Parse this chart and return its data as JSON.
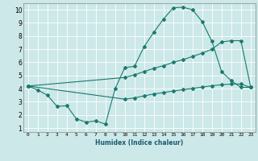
{
  "title": "",
  "xlabel": "Humidex (Indice chaleur)",
  "bg_color": "#cce8e8",
  "line_color": "#1a7a6e",
  "grid_color": "#ffffff",
  "xlim": [
    -0.5,
    23.5
  ],
  "ylim": [
    0.7,
    10.5
  ],
  "yticks": [
    1,
    2,
    3,
    4,
    5,
    6,
    7,
    8,
    9,
    10
  ],
  "xticks": [
    0,
    1,
    2,
    3,
    4,
    5,
    6,
    7,
    8,
    9,
    10,
    11,
    12,
    13,
    14,
    15,
    16,
    17,
    18,
    19,
    20,
    21,
    22,
    23
  ],
  "line1_x": [
    0,
    1,
    2,
    3,
    4,
    5,
    6,
    7,
    8,
    9,
    10,
    11,
    12,
    13,
    14,
    15,
    16,
    17,
    18,
    19,
    20,
    21,
    22,
    23
  ],
  "line1_y": [
    4.2,
    3.9,
    3.5,
    2.65,
    2.7,
    1.7,
    1.45,
    1.55,
    1.3,
    4.0,
    5.6,
    5.7,
    7.2,
    8.3,
    9.3,
    10.15,
    10.2,
    10.0,
    9.1,
    7.6,
    5.3,
    4.6,
    4.1,
    4.1
  ],
  "line2_x": [
    0,
    10,
    11,
    12,
    13,
    14,
    15,
    16,
    17,
    18,
    19,
    20,
    21,
    22,
    23
  ],
  "line2_y": [
    4.2,
    4.85,
    5.05,
    5.3,
    5.55,
    5.75,
    6.0,
    6.2,
    6.45,
    6.7,
    7.0,
    7.55,
    7.65,
    7.65,
    4.15
  ],
  "line3_x": [
    0,
    10,
    11,
    12,
    13,
    14,
    15,
    16,
    17,
    18,
    19,
    20,
    21,
    22,
    23
  ],
  "line3_y": [
    4.2,
    3.2,
    3.3,
    3.45,
    3.6,
    3.7,
    3.82,
    3.92,
    4.02,
    4.12,
    4.22,
    4.3,
    4.35,
    4.35,
    4.1
  ]
}
